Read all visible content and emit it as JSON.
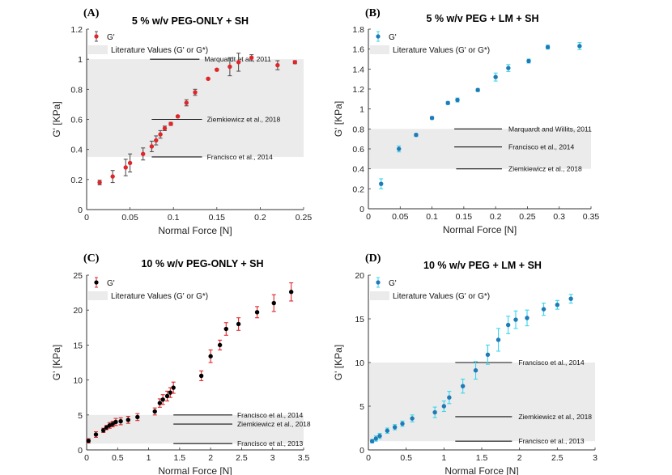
{
  "chart_data": [
    {
      "panel": "(A)",
      "title": "5 % w/v PEG-ONLY + SH",
      "type": "scatter",
      "xlabel": "Normal Force [N]",
      "ylabel": "G' [KPa]",
      "xlim": [
        0,
        0.25
      ],
      "ylim": [
        0,
        1.2
      ],
      "xticks": [
        "0",
        "0.05",
        "0.1",
        "0.15",
        "0.2",
        "0.25"
      ],
      "yticks": [
        "0",
        "0.2",
        "0.4",
        "0.6",
        "0.8",
        "1",
        "1.2"
      ],
      "legend": [
        "G'",
        "Literature Values (G' or G*)"
      ],
      "marker_color": "#e0252b",
      "error_color": "#555555",
      "band": [
        0.35,
        1.0
      ],
      "series": [
        {
          "name": "G'",
          "x": [
            0.015,
            0.03,
            0.045,
            0.05,
            0.065,
            0.075,
            0.08,
            0.085,
            0.09,
            0.097,
            0.105,
            0.115,
            0.125,
            0.14,
            0.15,
            0.165,
            0.175,
            0.19,
            0.22,
            0.24
          ],
          "y": [
            0.18,
            0.22,
            0.28,
            0.31,
            0.37,
            0.42,
            0.46,
            0.5,
            0.54,
            0.57,
            0.62,
            0.71,
            0.78,
            0.87,
            0.93,
            0.95,
            0.98,
            1.01,
            0.96,
            0.98
          ],
          "err": [
            0.015,
            0.04,
            0.055,
            0.06,
            0.04,
            0.035,
            0.03,
            0.025,
            0.015,
            0.01,
            0.005,
            0.02,
            0.02,
            0.005,
            0.005,
            0.06,
            0.06,
            0.02,
            0.03,
            0.01
          ]
        }
      ],
      "annotations": [
        {
          "text": "Marquardt et al., 2011",
          "x1": 0.073,
          "x2": 0.13,
          "y": 1.0
        },
        {
          "text": "Ziemkiewicz et al., 2018",
          "x1": 0.075,
          "x2": 0.133,
          "y": 0.6
        },
        {
          "text": "Francisco et al., 2014",
          "x1": 0.075,
          "x2": 0.133,
          "y": 0.35
        }
      ]
    },
    {
      "panel": "(B)",
      "title": "5 % w/v PEG + LM + SH",
      "type": "scatter",
      "xlabel": "Normal Force [N]",
      "ylabel": "G' [KPa]",
      "xlim": [
        0,
        0.35
      ],
      "ylim": [
        0,
        1.8
      ],
      "xticks": [
        "0",
        "0.05",
        "0.1",
        "0.15",
        "0.2",
        "0.25",
        "0.3",
        "0.35"
      ],
      "yticks": [
        "0",
        "0.2",
        "0.4",
        "0.6",
        "0.8",
        "1",
        "1.2",
        "1.4",
        "1.6",
        "1.8"
      ],
      "legend": [
        "G'",
        "Literature Values (G' or G*)"
      ],
      "marker_color": "#1f7ab5",
      "error_color": "#38d6ee",
      "band": [
        0.4,
        0.8
      ],
      "series": [
        {
          "name": "G'",
          "x": [
            0.02,
            0.048,
            0.075,
            0.1,
            0.125,
            0.14,
            0.172,
            0.2,
            0.22,
            0.252,
            0.282,
            0.332
          ],
          "y": [
            0.25,
            0.6,
            0.74,
            0.91,
            1.06,
            1.09,
            1.19,
            1.32,
            1.41,
            1.48,
            1.62,
            1.63
          ],
          "err": [
            0.05,
            0.03,
            0.015,
            0.015,
            0.015,
            0.02,
            0.015,
            0.04,
            0.035,
            0.02,
            0.02,
            0.035
          ]
        }
      ],
      "annotations": [
        {
          "text": "Marquardt and Willits, 2011",
          "x1": 0.135,
          "x2": 0.21,
          "y": 0.8
        },
        {
          "text": "Francisco et al., 2014",
          "x1": 0.135,
          "x2": 0.21,
          "y": 0.62
        },
        {
          "text": "Ziemkiewicz et al., 2018",
          "x1": 0.138,
          "x2": 0.21,
          "y": 0.4
        }
      ]
    },
    {
      "panel": "(C)",
      "title": "10 % w/v PEG-ONLY + SH",
      "type": "scatter",
      "xlabel": "Normal Force [N]",
      "ylabel": "G' [KPa]",
      "xlim": [
        0,
        3.5
      ],
      "ylim": [
        0,
        25
      ],
      "xticks": [
        "0",
        "0.5",
        "1",
        "1.5",
        "2",
        "2.5",
        "3",
        "3.5"
      ],
      "yticks": [
        "0",
        "5",
        "10",
        "15",
        "20",
        "25"
      ],
      "legend": [
        "G'",
        "Literature Values (G' or G*)"
      ],
      "marker_color": "#000000",
      "error_color": "#e0252b",
      "band": [
        0.9,
        5.0
      ],
      "series": [
        {
          "name": "G'",
          "x": [
            0.03,
            0.15,
            0.27,
            0.32,
            0.37,
            0.42,
            0.47,
            0.55,
            0.67,
            0.82,
            1.1,
            1.18,
            1.23,
            1.3,
            1.35,
            1.4,
            1.85,
            2.0,
            2.15,
            2.25,
            2.45,
            2.75,
            3.02,
            3.3
          ],
          "y": [
            1.3,
            2.2,
            2.8,
            3.2,
            3.5,
            3.7,
            4.0,
            4.1,
            4.3,
            4.7,
            5.5,
            6.7,
            7.2,
            7.7,
            8.2,
            8.9,
            10.6,
            13.4,
            15.0,
            17.3,
            18.0,
            19.7,
            21.0,
            22.6
          ],
          "err": [
            0.3,
            0.4,
            0.3,
            0.3,
            0.4,
            0.4,
            0.5,
            0.5,
            0.5,
            0.5,
            0.5,
            0.6,
            0.7,
            0.7,
            0.7,
            0.8,
            0.7,
            0.9,
            0.7,
            0.9,
            0.9,
            0.8,
            1.2,
            1.3
          ]
        }
      ],
      "annotations": [
        {
          "text": "Francisco et al., 2014",
          "x1": 1.4,
          "x2": 2.35,
          "y": 5.0
        },
        {
          "text": "Ziemkiewicz et al., 2018",
          "x1": 1.4,
          "x2": 2.35,
          "y": 3.7
        },
        {
          "text": "Francisco et al., 2013",
          "x1": 1.4,
          "x2": 2.35,
          "y": 0.9
        }
      ]
    },
    {
      "panel": "(D)",
      "title": "10 % w/v PEG + LM + SH",
      "type": "scatter",
      "xlabel": "Normal Force [N]",
      "ylabel": "G' [KPa]",
      "xlim": [
        0,
        3
      ],
      "ylim": [
        0,
        20
      ],
      "xticks": [
        "0",
        "0.5",
        "1",
        "1.5",
        "2",
        "2.5",
        "3"
      ],
      "yticks": [
        "0",
        "5",
        "10",
        "15",
        "20"
      ],
      "legend": [
        "G'",
        "Literature Values (G' or G*)"
      ],
      "marker_color": "#1f7ab5",
      "error_color": "#38d6ee",
      "band": [
        1.0,
        10.0
      ],
      "series": [
        {
          "name": "G'",
          "x": [
            0.05,
            0.1,
            0.15,
            0.25,
            0.35,
            0.45,
            0.58,
            0.88,
            1.0,
            1.07,
            1.25,
            1.42,
            1.58,
            1.72,
            1.85,
            1.95,
            2.1,
            2.32,
            2.5,
            2.68
          ],
          "y": [
            1.0,
            1.3,
            1.6,
            2.2,
            2.6,
            3.0,
            3.6,
            4.3,
            5.0,
            6.0,
            7.3,
            9.1,
            10.9,
            12.6,
            14.3,
            14.9,
            15.1,
            16.1,
            16.6,
            17.3
          ],
          "err": [
            0.2,
            0.3,
            0.3,
            0.3,
            0.3,
            0.3,
            0.4,
            0.6,
            0.6,
            0.7,
            0.8,
            1.0,
            1.1,
            1.3,
            1.0,
            1.0,
            0.9,
            0.7,
            0.5,
            0.5
          ]
        }
      ],
      "annotations": [
        {
          "text": "Francisco et al., 2014",
          "x1": 1.15,
          "x2": 1.9,
          "y": 10.0
        },
        {
          "text": "Ziemkiewicz et al., 2018",
          "x1": 1.15,
          "x2": 1.9,
          "y": 3.8
        },
        {
          "text": "Francisco et al., 2013",
          "x1": 1.15,
          "x2": 1.9,
          "y": 1.0
        }
      ]
    }
  ]
}
